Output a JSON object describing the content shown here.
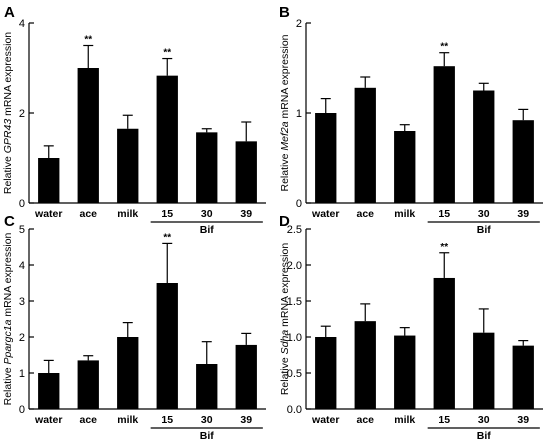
{
  "chart_data": [
    {
      "panel": "A",
      "type": "bar",
      "ylabel_prefix": "Relative ",
      "ylabel_gene": "GPR43",
      "ylabel_suffix": " mRNA expression",
      "yticks": [
        0,
        2,
        4
      ],
      "ylim": [
        0,
        4
      ],
      "categories": [
        "water",
        "ace",
        "milk",
        "15",
        "30",
        "39"
      ],
      "group_label": "Bif",
      "values": [
        1.0,
        3.0,
        1.65,
        2.83,
        1.57,
        1.37
      ],
      "errors": [
        0.27,
        0.5,
        0.3,
        0.38,
        0.08,
        0.43
      ],
      "significance": [
        "",
        "**",
        "",
        "**",
        "",
        ""
      ]
    },
    {
      "panel": "B",
      "type": "bar",
      "ylabel_prefix": "Relative ",
      "ylabel_gene": "Mef2a",
      "ylabel_suffix": " mRNA expression",
      "yticks": [
        0,
        1,
        2
      ],
      "ylim": [
        0,
        2
      ],
      "categories": [
        "water",
        "ace",
        "milk",
        "15",
        "30",
        "39"
      ],
      "group_label": "Bif",
      "values": [
        1.0,
        1.28,
        0.8,
        1.52,
        1.25,
        0.92
      ],
      "errors": [
        0.16,
        0.12,
        0.07,
        0.15,
        0.08,
        0.12
      ],
      "significance": [
        "",
        "",
        "",
        "**",
        "",
        ""
      ]
    },
    {
      "panel": "C",
      "type": "bar",
      "ylabel_prefix": "Relative ",
      "ylabel_gene": "Ppargc1a",
      "ylabel_suffix": " mRNA expression",
      "yticks": [
        0,
        1,
        2,
        3,
        4,
        5
      ],
      "ylim": [
        0,
        5
      ],
      "categories": [
        "water",
        "ace",
        "milk",
        "15",
        "30",
        "39"
      ],
      "group_label": "Bif",
      "values": [
        1.0,
        1.35,
        2.0,
        3.5,
        1.25,
        1.78
      ],
      "errors": [
        0.35,
        0.13,
        0.4,
        1.1,
        0.62,
        0.32
      ],
      "significance": [
        "",
        "",
        "",
        "**",
        "",
        ""
      ]
    },
    {
      "panel": "D",
      "type": "bar",
      "ylabel_prefix": "Relative ",
      "ylabel_gene": "Sdha",
      "ylabel_suffix": " mRNA expression",
      "yticks": [
        0.0,
        0.5,
        1.0,
        1.5,
        2.0,
        2.5
      ],
      "ylim": [
        0,
        2.5
      ],
      "categories": [
        "water",
        "ace",
        "milk",
        "15",
        "30",
        "39"
      ],
      "group_label": "Bif",
      "values": [
        1.0,
        1.22,
        1.02,
        1.82,
        1.06,
        0.88
      ],
      "errors": [
        0.15,
        0.24,
        0.11,
        0.35,
        0.33,
        0.07
      ],
      "significance": [
        "",
        "",
        "",
        "**",
        "",
        ""
      ]
    }
  ]
}
